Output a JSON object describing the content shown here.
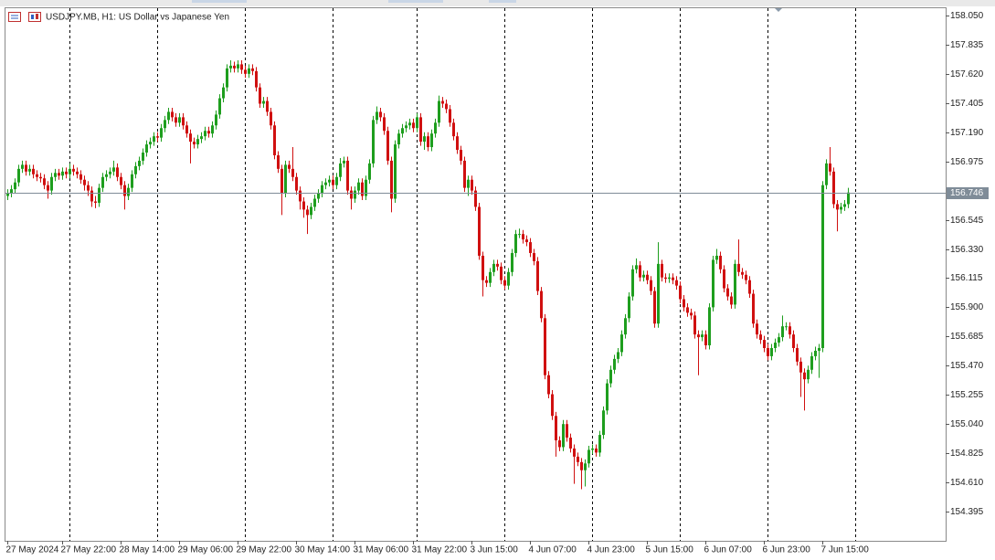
{
  "chart_data": {
    "type": "candlestick",
    "title": "USDJPY.MB, H1:  US Dollar vs Japanese Yen",
    "up_color": "#1e9e1e",
    "down_color": "#d01010",
    "current_price": 156.746,
    "current_price_color": "#7f8c98",
    "ylim": [
      154.18,
      158.11
    ],
    "yticks": [
      {
        "value": 158.05,
        "label": "158.050"
      },
      157.835,
      {
        "value": 157.62,
        "label": "157.620"
      },
      157.405,
      {
        "value": 157.19,
        "label": "157.190"
      },
      156.975,
      156.545,
      {
        "value": 156.33,
        "label": "156.330"
      },
      156.115,
      {
        "value": 155.9,
        "label": "155.900"
      },
      155.685,
      {
        "value": 155.47,
        "label": "155.470"
      },
      155.255,
      {
        "value": 155.04,
        "label": "155.040"
      },
      154.825,
      {
        "value": 154.61,
        "label": "154.610"
      },
      154.395
    ],
    "categories": [
      "27 May 2024",
      null,
      null,
      null,
      null,
      null,
      null,
      null,
      null,
      null,
      null,
      null,
      null,
      null,
      null,
      "27 May 22:00",
      null,
      null,
      null,
      null,
      null,
      null,
      null,
      null,
      null,
      null,
      null,
      null,
      null,
      null,
      null,
      "28 May 14:00",
      null,
      null,
      null,
      null,
      null,
      null,
      null,
      null,
      null,
      null,
      null,
      null,
      null,
      null,
      null,
      "29 May 06:00",
      null,
      null,
      null,
      null,
      null,
      null,
      null,
      null,
      null,
      null,
      null,
      null,
      null,
      null,
      null,
      "29 May 22:00",
      null,
      null,
      null,
      null,
      null,
      null,
      null,
      null,
      null,
      null,
      null,
      null,
      null,
      null,
      null,
      "30 May 14:00",
      null,
      null,
      null,
      null,
      null,
      null,
      null,
      null,
      null,
      null,
      null,
      null,
      null,
      null,
      null,
      "31 May 06:00",
      null,
      null,
      null,
      null,
      null,
      null,
      null,
      null,
      null,
      null,
      null,
      null,
      null,
      null,
      null,
      "31 May 22:00",
      null,
      null,
      null,
      null,
      null,
      null,
      null,
      null,
      null,
      null,
      null,
      null,
      null,
      null,
      null,
      "3 Jun 15:00",
      null,
      null,
      null,
      null,
      null,
      null,
      null,
      null,
      null,
      null,
      null,
      null,
      null,
      null,
      null,
      "4 Jun 07:00",
      null,
      null,
      null,
      null,
      null,
      null,
      null,
      null,
      null,
      null,
      null,
      null,
      null,
      null,
      null,
      "4 Jun 23:00",
      null,
      null,
      null,
      null,
      null,
      null,
      null,
      null,
      null,
      null,
      null,
      null,
      null,
      null,
      null,
      "5 Jun 15:00",
      null,
      null,
      null,
      null,
      null,
      null,
      null,
      null,
      null,
      null,
      null,
      null,
      null,
      null,
      null,
      "6 Jun 07:00",
      null,
      null,
      null,
      null,
      null,
      null,
      null,
      null,
      null,
      null,
      null,
      null,
      null,
      null,
      null,
      "6 Jun 23:00",
      null,
      null,
      null,
      null,
      null,
      null,
      null,
      null,
      null,
      null,
      null,
      null,
      null,
      null,
      null,
      "7 Jun 15:00",
      null,
      null,
      null,
      null,
      null,
      null,
      null
    ],
    "open": [
      156.72,
      156.74,
      156.77,
      156.82,
      156.92,
      156.95,
      156.9,
      156.92,
      156.88,
      156.86,
      156.85,
      156.8,
      156.76,
      156.86,
      156.89,
      156.87,
      156.9,
      156.88,
      156.92,
      156.9,
      156.88,
      156.84,
      156.8,
      156.76,
      156.68,
      156.67,
      156.78,
      156.86,
      156.88,
      156.9,
      156.93,
      156.86,
      156.8,
      156.72,
      156.78,
      156.88,
      156.94,
      156.98,
      157.04,
      157.1,
      157.12,
      157.16,
      157.15,
      157.22,
      157.28,
      157.34,
      157.3,
      157.26,
      157.3,
      157.24,
      157.18,
      157.12,
      157.1,
      157.14,
      157.16,
      157.2,
      157.18,
      157.24,
      157.32,
      157.44,
      157.52,
      157.66,
      157.68,
      157.66,
      157.69,
      157.65,
      157.62,
      157.66,
      157.64,
      157.52,
      157.4,
      157.42,
      157.34,
      157.24,
      157.02,
      156.92,
      156.74,
      156.95,
      156.92,
      156.86,
      156.76,
      156.68,
      156.62,
      156.58,
      156.64,
      156.7,
      156.74,
      156.8,
      156.82,
      156.84,
      156.8,
      156.86,
      156.96,
      156.98,
      156.76,
      156.7,
      156.76,
      156.82,
      156.72,
      156.84,
      156.96,
      157.28,
      157.34,
      157.3,
      157.2,
      156.98,
      156.7,
      157.1,
      157.18,
      157.22,
      157.24,
      157.26,
      157.22,
      157.3,
      157.12,
      157.16,
      157.08,
      157.18,
      157.26,
      157.42,
      157.4,
      157.36,
      157.26,
      157.16,
      157.06,
      156.98,
      156.78,
      156.84,
      156.76,
      156.64,
      156.28,
      156.1,
      156.08,
      156.16,
      156.22,
      156.2,
      156.1,
      156.06,
      156.16,
      156.3,
      156.44,
      156.44,
      156.4,
      156.38,
      156.3,
      156.24,
      156.02,
      155.82,
      155.4,
      155.26,
      155.1,
      154.92,
      154.87,
      155.04,
      154.94,
      154.86,
      154.8,
      154.76,
      154.7,
      154.75,
      154.85,
      154.86,
      154.83,
      154.96,
      155.14,
      155.34,
      155.44,
      155.52,
      155.57,
      155.7,
      155.82,
      155.98,
      156.18,
      156.21,
      156.12,
      156.14,
      156.1,
      156.02,
      155.78,
      156.22,
      156.12,
      156.11,
      156.12,
      156.1,
      156.06,
      155.96,
      155.9,
      155.86,
      155.84,
      155.7,
      155.68,
      155.7,
      155.62,
      155.9,
      156.25,
      156.28,
      156.18,
      156.04,
      155.98,
      155.92,
      156.22,
      156.16,
      156.14,
      156.1,
      156.0,
      155.78,
      155.7,
      155.66,
      155.6,
      155.54,
      155.6,
      155.64,
      155.68,
      155.76,
      155.76,
      155.7,
      155.6,
      155.5,
      155.42,
      155.37,
      155.44,
      155.54,
      155.58,
      155.6,
      156.8,
      156.96,
      156.9,
      156.66,
      156.62,
      156.64,
      156.66
    ],
    "high": [
      156.77,
      156.8,
      156.85,
      156.95,
      156.98,
      156.98,
      156.95,
      156.95,
      156.91,
      156.89,
      156.88,
      156.83,
      156.89,
      156.92,
      156.92,
      156.93,
      156.93,
      156.96,
      156.95,
      156.93,
      156.91,
      156.87,
      156.83,
      156.79,
      156.72,
      156.81,
      156.89,
      156.91,
      156.93,
      156.98,
      156.96,
      156.89,
      156.83,
      156.81,
      156.91,
      156.97,
      157.01,
      157.07,
      157.13,
      157.15,
      157.19,
      157.19,
      157.25,
      157.31,
      157.37,
      157.37,
      157.33,
      157.33,
      157.33,
      157.27,
      157.21,
      157.15,
      157.17,
      157.19,
      157.23,
      157.23,
      157.27,
      157.35,
      157.47,
      157.55,
      157.69,
      157.72,
      157.71,
      157.72,
      157.72,
      157.68,
      157.69,
      157.69,
      157.67,
      157.55,
      157.45,
      157.45,
      157.37,
      157.27,
      157.05,
      156.95,
      156.98,
      156.98,
      157.08,
      156.89,
      156.79,
      156.71,
      156.65,
      156.67,
      156.73,
      156.77,
      156.83,
      156.85,
      156.87,
      156.87,
      156.89,
      157.0,
      157.01,
      157.01,
      156.79,
      156.79,
      156.85,
      156.85,
      156.87,
      156.99,
      157.31,
      157.38,
      157.37,
      157.33,
      157.23,
      157.01,
      157.13,
      157.21,
      157.25,
      157.27,
      157.29,
      157.29,
      157.33,
      157.33,
      157.19,
      157.19,
      157.21,
      157.29,
      157.46,
      157.45,
      157.43,
      157.39,
      157.29,
      157.19,
      157.09,
      157.01,
      156.87,
      156.87,
      156.79,
      156.67,
      156.31,
      156.13,
      156.19,
      156.25,
      156.25,
      156.23,
      156.13,
      156.19,
      156.33,
      156.47,
      156.48,
      156.47,
      156.43,
      156.41,
      156.33,
      156.27,
      156.05,
      155.85,
      155.43,
      155.29,
      155.13,
      154.95,
      155.07,
      155.07,
      154.97,
      154.89,
      154.83,
      154.79,
      154.78,
      154.88,
      154.89,
      154.89,
      154.99,
      155.17,
      155.37,
      155.47,
      155.55,
      155.6,
      155.73,
      155.85,
      156.01,
      156.21,
      156.26,
      156.24,
      156.17,
      156.17,
      156.13,
      156.05,
      156.38,
      156.25,
      156.15,
      156.15,
      156.15,
      156.13,
      156.09,
      155.99,
      155.93,
      155.89,
      155.87,
      155.73,
      155.73,
      155.73,
      155.93,
      156.28,
      156.33,
      156.31,
      156.21,
      156.07,
      156.01,
      156.25,
      156.4,
      156.19,
      156.17,
      156.13,
      156.03,
      155.81,
      155.73,
      155.69,
      155.63,
      155.63,
      155.67,
      155.71,
      155.84,
      155.79,
      155.79,
      155.73,
      155.63,
      155.53,
      155.45,
      155.47,
      155.57,
      155.61,
      155.63,
      156.83,
      156.99,
      157.08,
      156.93,
      156.69,
      156.67,
      156.69,
      156.78
    ],
    "low": [
      156.69,
      156.71,
      156.74,
      156.79,
      156.89,
      156.87,
      156.87,
      156.85,
      156.83,
      156.82,
      156.77,
      156.7,
      156.73,
      156.83,
      156.84,
      156.84,
      156.85,
      156.85,
      156.87,
      156.85,
      156.81,
      156.76,
      156.72,
      156.64,
      156.63,
      156.64,
      156.75,
      156.83,
      156.85,
      156.87,
      156.83,
      156.77,
      156.62,
      156.69,
      156.75,
      156.85,
      156.91,
      156.95,
      157.01,
      157.07,
      157.09,
      157.12,
      157.12,
      157.19,
      157.25,
      157.27,
      157.23,
      157.23,
      157.21,
      157.15,
      156.96,
      157.07,
      157.07,
      157.11,
      157.13,
      157.15,
      157.15,
      157.21,
      157.29,
      157.41,
      157.49,
      157.63,
      157.63,
      157.63,
      157.62,
      157.59,
      157.59,
      157.61,
      157.49,
      157.37,
      157.37,
      157.31,
      157.21,
      156.99,
      156.89,
      156.58,
      156.71,
      156.89,
      156.83,
      156.73,
      156.62,
      156.56,
      156.44,
      156.55,
      156.61,
      156.67,
      156.71,
      156.77,
      156.79,
      156.77,
      156.77,
      156.83,
      156.93,
      156.73,
      156.62,
      156.67,
      156.73,
      156.69,
      156.69,
      156.81,
      156.93,
      157.25,
      157.27,
      157.17,
      156.95,
      156.6,
      156.67,
      157.07,
      157.15,
      157.19,
      157.21,
      157.19,
      157.19,
      157.09,
      157.06,
      157.05,
      157.05,
      157.15,
      157.23,
      157.37,
      157.33,
      157.23,
      157.13,
      157.03,
      156.95,
      156.75,
      156.72,
      156.73,
      156.61,
      156.25,
      155.98,
      156.05,
      156.05,
      156.13,
      156.17,
      156.07,
      156.03,
      156.03,
      156.13,
      156.27,
      156.41,
      156.37,
      156.35,
      156.27,
      156.21,
      155.99,
      155.79,
      155.37,
      155.23,
      155.07,
      154.8,
      154.84,
      154.84,
      154.91,
      154.83,
      154.6,
      154.73,
      154.56,
      154.58,
      154.72,
      154.82,
      154.8,
      154.8,
      154.93,
      155.11,
      155.31,
      155.41,
      155.49,
      155.54,
      155.67,
      155.79,
      155.95,
      156.15,
      156.09,
      156.09,
      156.07,
      155.99,
      155.75,
      155.75,
      156.09,
      156.08,
      156.08,
      156.07,
      156.03,
      155.93,
      155.87,
      155.83,
      155.81,
      155.67,
      155.4,
      155.65,
      155.59,
      155.59,
      155.87,
      156.22,
      156.15,
      156.01,
      155.95,
      155.89,
      155.89,
      156.13,
      156.11,
      156.07,
      155.97,
      155.75,
      155.67,
      155.63,
      155.57,
      155.51,
      155.51,
      155.57,
      155.61,
      155.65,
      155.73,
      155.67,
      155.57,
      155.47,
      155.24,
      155.14,
      155.34,
      155.41,
      155.51,
      155.38,
      155.57,
      156.77,
      156.87,
      156.63,
      156.46,
      156.59,
      156.61,
      156.63
    ],
    "close": [
      156.74,
      156.77,
      156.82,
      156.92,
      156.95,
      156.9,
      156.92,
      156.88,
      156.86,
      156.85,
      156.8,
      156.76,
      156.86,
      156.89,
      156.87,
      156.9,
      156.88,
      156.92,
      156.9,
      156.88,
      156.84,
      156.8,
      156.76,
      156.68,
      156.67,
      156.78,
      156.86,
      156.88,
      156.9,
      156.93,
      156.86,
      156.8,
      156.72,
      156.78,
      156.88,
      156.94,
      156.98,
      157.04,
      157.1,
      157.12,
      157.16,
      157.15,
      157.22,
      157.28,
      157.34,
      157.3,
      157.26,
      157.3,
      157.24,
      157.18,
      157.12,
      157.1,
      157.14,
      157.16,
      157.2,
      157.18,
      157.24,
      157.32,
      157.44,
      157.52,
      157.66,
      157.68,
      157.66,
      157.69,
      157.65,
      157.62,
      157.66,
      157.64,
      157.52,
      157.4,
      157.42,
      157.34,
      157.24,
      157.02,
      156.92,
      156.74,
      156.95,
      156.92,
      156.86,
      156.76,
      156.68,
      156.62,
      156.58,
      156.64,
      156.7,
      156.74,
      156.8,
      156.82,
      156.84,
      156.8,
      156.86,
      156.96,
      156.98,
      156.76,
      156.7,
      156.76,
      156.82,
      156.72,
      156.84,
      156.96,
      157.28,
      157.34,
      157.3,
      157.2,
      156.98,
      156.7,
      157.1,
      157.18,
      157.22,
      157.24,
      157.26,
      157.22,
      157.3,
      157.12,
      157.16,
      157.08,
      157.18,
      157.26,
      157.42,
      157.4,
      157.36,
      157.26,
      157.16,
      157.06,
      156.98,
      156.78,
      156.84,
      156.76,
      156.64,
      156.28,
      156.1,
      156.08,
      156.16,
      156.22,
      156.2,
      156.1,
      156.06,
      156.16,
      156.3,
      156.44,
      156.44,
      156.4,
      156.38,
      156.3,
      156.24,
      156.02,
      155.82,
      155.4,
      155.26,
      155.1,
      154.92,
      154.87,
      155.04,
      154.94,
      154.86,
      154.8,
      154.76,
      154.7,
      154.75,
      154.85,
      154.86,
      154.83,
      154.96,
      155.14,
      155.34,
      155.44,
      155.52,
      155.57,
      155.7,
      155.82,
      155.98,
      156.18,
      156.21,
      156.12,
      156.14,
      156.1,
      156.02,
      155.78,
      156.22,
      156.12,
      156.11,
      156.12,
      156.1,
      156.06,
      155.96,
      155.9,
      155.86,
      155.84,
      155.7,
      155.68,
      155.7,
      155.62,
      155.9,
      156.25,
      156.28,
      156.18,
      156.04,
      155.98,
      155.92,
      156.22,
      156.16,
      156.14,
      156.1,
      156.0,
      155.78,
      155.7,
      155.66,
      155.6,
      155.54,
      155.6,
      155.64,
      155.68,
      155.76,
      155.76,
      155.7,
      155.6,
      155.5,
      155.42,
      155.37,
      155.44,
      155.54,
      155.58,
      155.6,
      156.8,
      156.96,
      156.9,
      156.66,
      156.62,
      156.64,
      156.66,
      156.746
    ]
  }
}
